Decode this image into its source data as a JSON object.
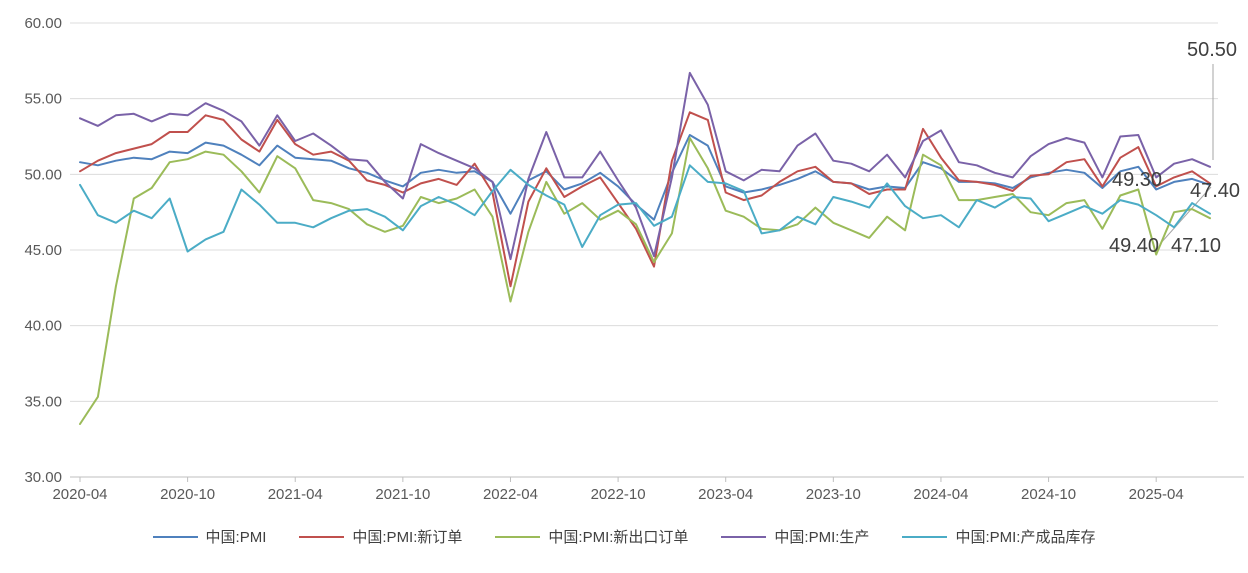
{
  "chart_data": {
    "type": "line",
    "title": "",
    "grid": "horizontal",
    "legend_position": "bottom",
    "x_axis": {
      "start": "2020-04",
      "interval": "monthly",
      "count": 64,
      "tick_labels": [
        "2020-04",
        "2020-10",
        "2021-04",
        "2021-10",
        "2022-04",
        "2022-10",
        "2023-04",
        "2023-10",
        "2024-04",
        "2024-10",
        "2025-04"
      ]
    },
    "y_axis": {
      "min": 30,
      "max": 60,
      "step": 5,
      "tick_labels": [
        "60.00",
        "55.00",
        "50.00",
        "45.00",
        "40.00",
        "35.00",
        "30.00"
      ]
    },
    "series": [
      {
        "name": "中国:PMI",
        "color": "#4F81BD",
        "values": [
          50.8,
          50.6,
          50.9,
          51.1,
          51.0,
          51.5,
          51.4,
          52.1,
          51.9,
          51.3,
          50.6,
          51.9,
          51.1,
          51.0,
          50.9,
          50.4,
          50.1,
          49.6,
          49.2,
          50.1,
          50.3,
          50.1,
          50.2,
          49.5,
          47.4,
          49.6,
          50.2,
          49.0,
          49.4,
          50.1,
          49.2,
          48.0,
          47.0,
          50.1,
          52.6,
          51.9,
          49.2,
          48.8,
          49.0,
          49.3,
          49.7,
          50.2,
          49.5,
          49.4,
          49.0,
          49.2,
          49.1,
          50.8,
          50.4,
          49.5,
          49.5,
          49.4,
          49.1,
          49.8,
          50.1,
          50.3,
          50.1,
          49.1,
          50.2,
          50.5,
          49.0,
          49.5,
          49.7,
          49.3
        ]
      },
      {
        "name": "中国:PMI:新订单",
        "color": "#C0504D",
        "values": [
          50.2,
          50.9,
          51.4,
          51.7,
          52.0,
          52.8,
          52.8,
          53.9,
          53.6,
          52.3,
          51.5,
          53.6,
          52.0,
          51.3,
          51.5,
          50.9,
          49.6,
          49.3,
          48.8,
          49.4,
          49.7,
          49.3,
          50.7,
          48.8,
          42.6,
          48.2,
          50.4,
          48.5,
          49.2,
          49.8,
          48.1,
          46.4,
          43.9,
          50.9,
          54.1,
          53.6,
          48.8,
          48.3,
          48.6,
          49.5,
          50.2,
          50.5,
          49.5,
          49.4,
          48.7,
          49.0,
          49.0,
          53.0,
          51.1,
          49.6,
          49.5,
          49.3,
          48.9,
          49.9,
          50.0,
          50.8,
          51.0,
          49.2,
          51.1,
          51.8,
          49.2,
          49.8,
          50.2,
          49.4
        ]
      },
      {
        "name": "中国:PMI:新出口订单",
        "color": "#9BBB59",
        "values": [
          33.5,
          35.3,
          42.6,
          48.4,
          49.1,
          50.8,
          51.0,
          51.5,
          51.3,
          50.2,
          48.8,
          51.2,
          50.4,
          48.3,
          48.1,
          47.7,
          46.7,
          46.2,
          46.6,
          48.5,
          48.1,
          48.4,
          49.0,
          47.2,
          41.6,
          46.2,
          49.5,
          47.4,
          48.1,
          47.0,
          47.6,
          46.7,
          44.2,
          46.1,
          52.4,
          50.4,
          47.6,
          47.2,
          46.4,
          46.3,
          46.7,
          47.8,
          46.8,
          46.3,
          45.8,
          47.2,
          46.3,
          51.3,
          50.6,
          48.3,
          48.3,
          48.5,
          48.7,
          47.5,
          47.3,
          48.1,
          48.3,
          46.4,
          48.6,
          49.0,
          44.7,
          47.5,
          47.7,
          47.1
        ]
      },
      {
        "name": "中国:PMI:生产",
        "color": "#7A62A8",
        "values": [
          53.7,
          53.2,
          53.9,
          54.0,
          53.5,
          54.0,
          53.9,
          54.7,
          54.2,
          53.5,
          51.9,
          53.9,
          52.2,
          52.7,
          51.9,
          51.0,
          50.9,
          49.5,
          48.4,
          52.0,
          51.4,
          50.9,
          50.4,
          49.5,
          44.4,
          49.7,
          52.8,
          49.8,
          49.8,
          51.5,
          49.6,
          47.8,
          44.6,
          49.8,
          56.7,
          54.6,
          50.2,
          49.6,
          50.3,
          50.2,
          51.9,
          52.7,
          50.9,
          50.7,
          50.2,
          51.3,
          49.8,
          52.2,
          52.9,
          50.8,
          50.6,
          50.1,
          49.8,
          51.2,
          52.0,
          52.4,
          52.1,
          49.8,
          52.5,
          52.6,
          49.8,
          50.7,
          51.0,
          50.5
        ]
      },
      {
        "name": "中国:PMI:产成品库存",
        "color": "#4BACC6",
        "values": [
          49.3,
          47.3,
          46.8,
          47.6,
          47.1,
          48.4,
          44.9,
          45.7,
          46.2,
          49.0,
          48.0,
          46.8,
          46.8,
          46.5,
          47.1,
          47.6,
          47.7,
          47.2,
          46.3,
          47.9,
          48.5,
          48.0,
          47.3,
          48.9,
          50.3,
          49.3,
          48.6,
          48.0,
          45.2,
          47.3,
          48.0,
          48.1,
          46.6,
          47.2,
          50.6,
          49.5,
          49.4,
          48.9,
          46.1,
          46.3,
          47.2,
          46.7,
          48.5,
          48.2,
          47.8,
          49.4,
          47.9,
          47.1,
          47.3,
          46.5,
          48.3,
          47.8,
          48.5,
          48.4,
          46.9,
          47.4,
          47.9,
          47.4,
          48.3,
          48.0,
          47.3,
          46.5,
          48.1,
          47.4
        ]
      }
    ],
    "end_labels": [
      {
        "text": "50.50",
        "series": "中国:PMI:生产"
      },
      {
        "text": "49.30",
        "series": "中国:PMI"
      },
      {
        "text": "47.40",
        "series": "中国:PMI:产成品库存"
      },
      {
        "text": "49.40",
        "series": "中国:PMI:新订单"
      },
      {
        "text": "47.10",
        "series": "中国:PMI:新出口订单"
      }
    ]
  }
}
